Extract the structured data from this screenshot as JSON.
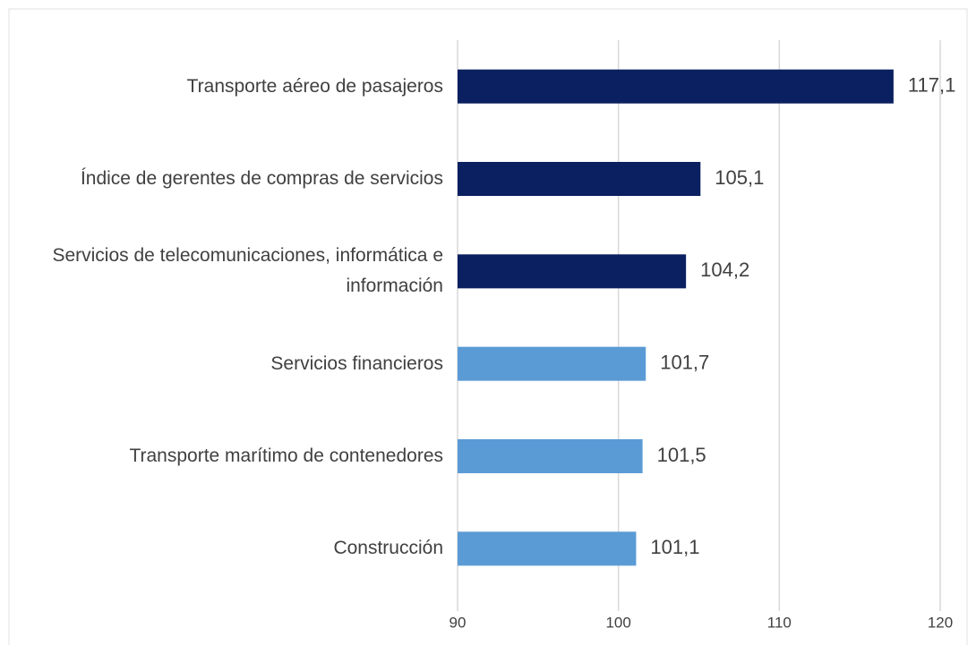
{
  "chart_data": {
    "type": "bar",
    "orientation": "horizontal",
    "categories": [
      "Transporte aéreo de pasajeros",
      "Índice de gerentes de compras de servicios",
      "Servicios de telecomunicaciones, informática e información",
      "Servicios financieros",
      "Transporte marítimo de contenedores",
      "Construcción"
    ],
    "values": [
      117.1,
      105.1,
      104.2,
      101.7,
      101.5,
      101.1
    ],
    "value_labels": [
      "117,1",
      "105,1",
      "104,2",
      "101,7",
      "101,5",
      "101,1"
    ],
    "colors": [
      "#0b2060",
      "#0b2060",
      "#0b2060",
      "#5b9bd5",
      "#5b9bd5",
      "#5b9bd5"
    ],
    "xlim": [
      90,
      120
    ],
    "xticks": [
      90,
      100,
      110,
      120
    ],
    "grid": true
  }
}
